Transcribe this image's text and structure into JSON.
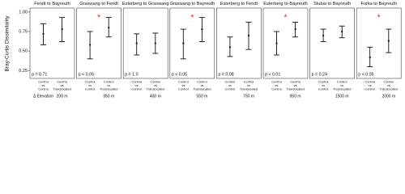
{
  "chart_data": {
    "type": "errorbar",
    "y_label": "Bray-Curtis Dissimilarity",
    "x_label": "Δ Elevation",
    "ylim": [
      0.15,
      1.05
    ],
    "yticks": [
      {
        "value": 0.25,
        "label": "0.25"
      },
      {
        "value": 0.5,
        "label": "0.50"
      },
      {
        "value": 0.75,
        "label": "0.75"
      },
      {
        "value": 1.0,
        "label": "1.00"
      }
    ],
    "categories": [
      [
        "Control",
        "vs",
        "Control"
      ],
      [
        "Control",
        "vs",
        "Translocated"
      ]
    ],
    "color": "#111111",
    "annotation_color": "#e8312a",
    "panels": [
      {
        "title": "Fendt to Bayreuth",
        "p_label": "p = 0.71",
        "elevation": "200 m",
        "means": [
          0.72,
          0.78
        ],
        "lower": [
          0.58,
          0.62
        ],
        "upper": [
          0.85,
          0.93
        ]
      },
      {
        "title": "Graswang to Fendt",
        "p_label": "p < 0.05",
        "elevation": "350 m",
        "annotation": "*",
        "means": [
          0.58,
          0.8
        ],
        "lower": [
          0.4,
          0.68
        ],
        "upper": [
          0.75,
          0.93
        ]
      },
      {
        "title": "Esterberg to Graswang",
        "p_label": "p = 1.0",
        "elevation": "400 m",
        "means": [
          0.6,
          0.6
        ],
        "lower": [
          0.45,
          0.47
        ],
        "upper": [
          0.72,
          0.73
        ]
      },
      {
        "title": "Graswang to Bayreuth",
        "p_label": "p < 0.05",
        "elevation": "550 m",
        "annotation": "*",
        "means": [
          0.6,
          0.78
        ],
        "lower": [
          0.4,
          0.62
        ],
        "upper": [
          0.78,
          0.93
        ]
      },
      {
        "title": "Esterberg to Fendt",
        "p_label": "p = 0.08",
        "elevation": "750 m",
        "means": [
          0.55,
          0.7
        ],
        "lower": [
          0.43,
          0.52
        ],
        "upper": [
          0.68,
          0.87
        ]
      },
      {
        "title": "Esterberg to Bayreuth",
        "p_label": "p < 0.01",
        "elevation": "950 m",
        "annotation": "*",
        "means": [
          0.6,
          0.78
        ],
        "lower": [
          0.45,
          0.68
        ],
        "upper": [
          0.75,
          0.87
        ]
      },
      {
        "title": "Stubai to Bayreuth",
        "p_label": "p = 0.24",
        "elevation": "1500 m",
        "means": [
          0.7,
          0.75
        ],
        "lower": [
          0.62,
          0.67
        ],
        "upper": [
          0.78,
          0.82
        ]
      },
      {
        "title": "Furka to Bayreuth",
        "p_label": "p < 0.05",
        "elevation": "2000 m",
        "annotation": "*",
        "means": [
          0.42,
          0.63
        ],
        "lower": [
          0.3,
          0.48
        ],
        "upper": [
          0.55,
          0.78
        ]
      }
    ]
  }
}
